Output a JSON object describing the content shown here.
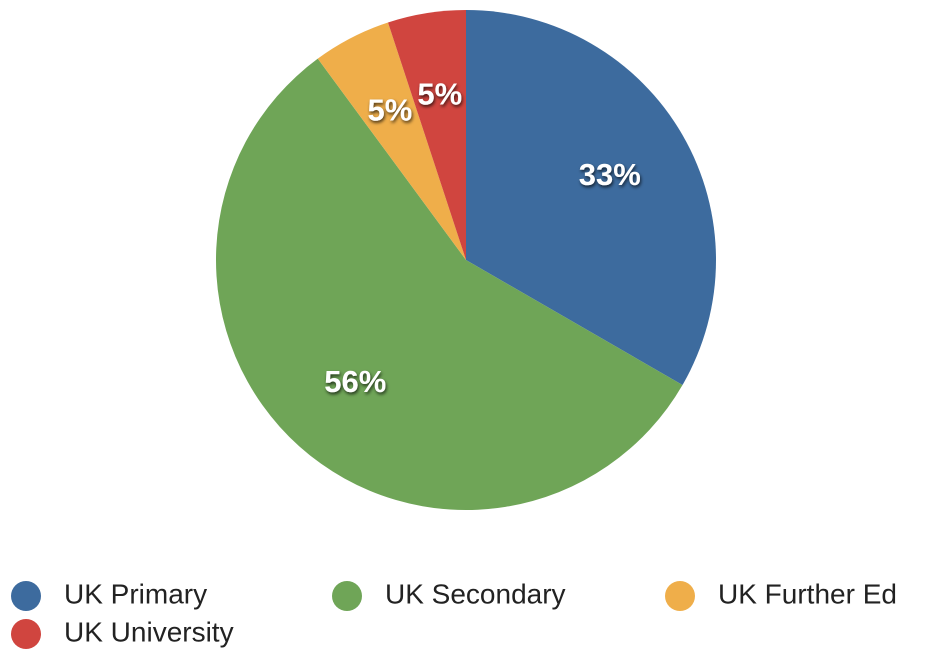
{
  "chart_data": {
    "type": "pie",
    "categories": [
      "UK Primary",
      "UK Secondary",
      "UK Further Ed",
      "UK University"
    ],
    "values": [
      33,
      56,
      5,
      5
    ],
    "value_labels": [
      "33%",
      "56%",
      "5%",
      "5%"
    ],
    "colors": [
      "#3d6b9e",
      "#6fa557",
      "#efae4a",
      "#d0453f"
    ]
  }
}
